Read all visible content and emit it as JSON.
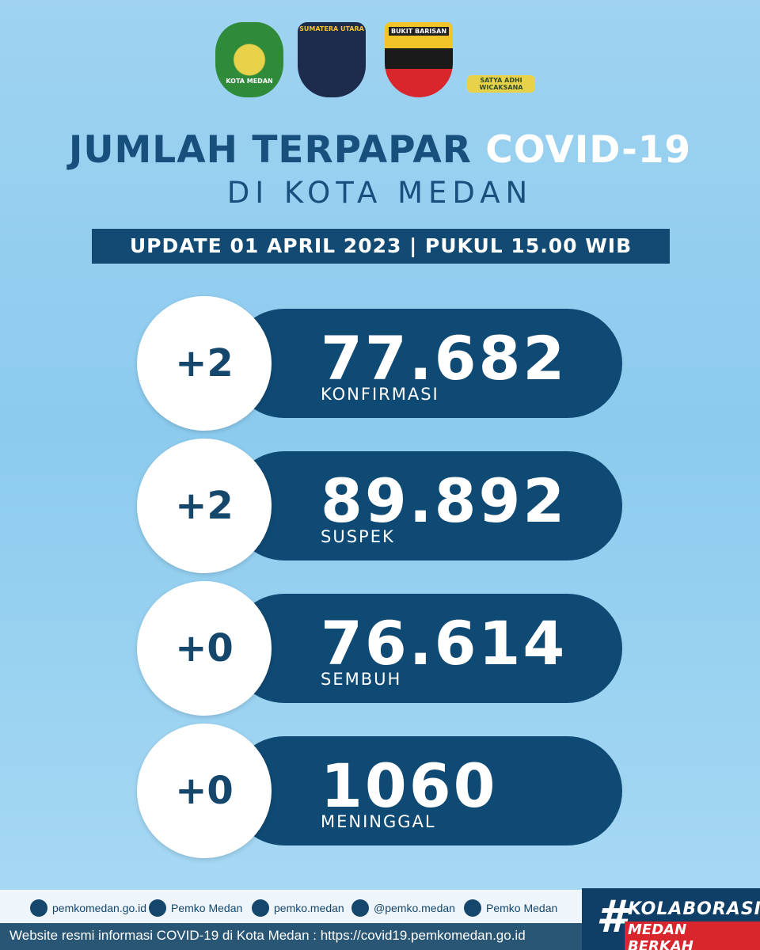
{
  "logos": [
    "KOTA MEDAN",
    "SUMATERA UTARA",
    "BUKIT BARISAN",
    "SATYA ADHI WICAKSANA"
  ],
  "header": {
    "title": "JUMLAH TERPAPAR",
    "title_highlight": "COVID-19",
    "subtitle": "DI KOTA MEDAN",
    "update": "UPDATE 01 APRIL 2023 | PUKUL 15.00 WIB"
  },
  "stats": [
    {
      "change": "+2",
      "value": "77.682",
      "label": "KONFIRMASI"
    },
    {
      "change": "+2",
      "value": "89.892",
      "label": "SUSPEK"
    },
    {
      "change": "+0",
      "value": "76.614",
      "label": "SEMBUH"
    },
    {
      "change": "+0",
      "value": "1060",
      "label": "MENINGGAL"
    }
  ],
  "footer": {
    "links": [
      "pemkomedan.go.id",
      "Pemko Medan",
      "pemko.medan",
      "@pemko.medan",
      "Pemko Medan"
    ],
    "website": "Website resmi informasi COVID-19 di Kota Medan : https://covid19.pemkomedan.go.id",
    "hashtag": "#",
    "tag1": "KOLABORASI",
    "tag2": "MEDAN BERKAH"
  }
}
